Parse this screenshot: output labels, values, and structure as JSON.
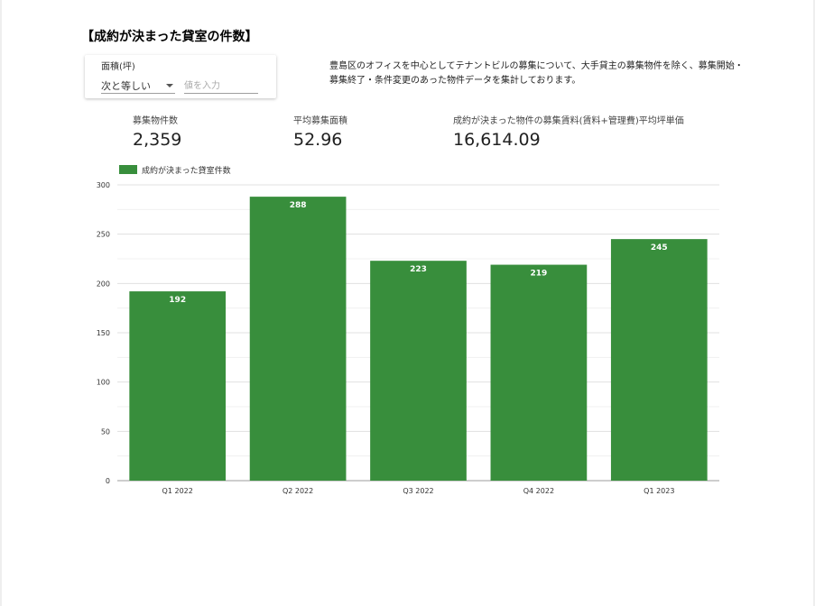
{
  "title": "【成約が決まった貸室の件数】",
  "filter": {
    "label": "面積(坪)",
    "operator": "次と等しい",
    "value": "",
    "placeholder": "値を入力"
  },
  "description": "豊島区のオフィスを中心としてテナントビルの募集について、大手貸主の募集物件を除く、募集開始・募集終了・条件変更のあった物件データを集計しております。",
  "kpis": [
    {
      "label": "募集物件数",
      "value": "2,359"
    },
    {
      "label": "平均募集面積",
      "value": "52.96"
    },
    {
      "label": "成約が決まった物件の募集賃料(賃料+管理費)平均坪単価",
      "value": "16,614.09"
    }
  ],
  "chart_data": {
    "type": "bar",
    "categories": [
      "Q1 2022",
      "Q2 2022",
      "Q3 2022",
      "Q4 2022",
      "Q1 2023"
    ],
    "series": [
      {
        "name": "成約が決まった貸室件数",
        "values": [
          192,
          288,
          223,
          219,
          245
        ],
        "color": "#388e3c"
      }
    ],
    "ylim": [
      0,
      300
    ],
    "yticks": [
      0,
      50,
      100,
      150,
      200,
      250,
      300
    ],
    "grid": true,
    "legend": "top-left",
    "data_labels": true
  }
}
